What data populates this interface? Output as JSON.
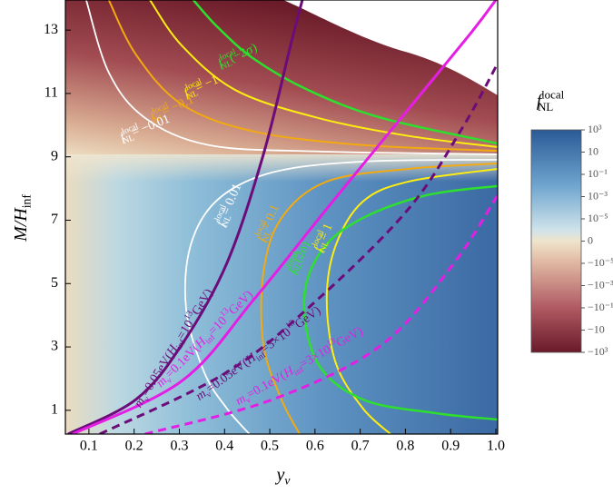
{
  "chart_data": {
    "type": "line",
    "x_label": [
      {
        "t": "y",
        "italic": true
      },
      {
        "t": "ν",
        "sub": true,
        "italic": true
      }
    ],
    "y_label": [
      {
        "t": "M/H",
        "italic": true
      },
      {
        "t": "inf",
        "sub": true
      }
    ],
    "xlim": [
      0.048,
      1.004
    ],
    "ylim": [
      0.25,
      13.95
    ],
    "xticks": [
      0.1,
      0.2,
      0.3,
      0.4,
      0.5,
      0.6,
      0.7,
      0.8,
      0.9,
      {
        "value": 1,
        "label": "1.0"
      }
    ],
    "yticks": [
      1,
      3,
      5,
      7,
      9,
      11,
      13
    ],
    "series": [
      {
        "color": "#2ee02e",
        "width": 2.5,
        "x": [
          0.331,
          0.385,
          0.465,
          0.586,
          0.747,
          1.004
        ],
        "y": [
          13.95,
          13.09,
          12.09,
          11.1,
          10.23,
          9.42
        ]
      },
      {
        "color": "#ffee10",
        "width": 2,
        "x": [
          0.235,
          0.305,
          0.425,
          0.606,
          0.807,
          1.004
        ],
        "y": [
          13.95,
          12.52,
          11.1,
          10.23,
          9.66,
          9.31
        ]
      },
      {
        "color": "#f2aa10",
        "width": 2,
        "x": [
          0.144,
          0.204,
          0.305,
          0.465,
          0.706,
          1.004
        ],
        "y": [
          13.95,
          12.23,
          10.66,
          9.8,
          9.37,
          9.19
        ]
      },
      {
        "color": "#ffffff",
        "width": 1.8,
        "x": [
          0.094,
          0.144,
          0.224,
          0.365,
          0.606,
          1.004
        ],
        "y": [
          13.95,
          11.66,
          10.23,
          9.37,
          9.17,
          9.08
        ]
      },
      {
        "color": "#ffffff",
        "width": 1.8,
        "x": [
          1.004,
          0.706,
          0.506,
          0.385,
          0.325,
          0.315,
          0.355,
          0.405,
          0.455
        ],
        "y": [
          8.91,
          8.85,
          8.51,
          7.65,
          6.21,
          4.21,
          2.2,
          1.06,
          0.25
        ]
      },
      {
        "color": "#f2aa10",
        "width": 2,
        "x": [
          1.004,
          0.807,
          0.626,
          0.526,
          0.486,
          0.486,
          0.526,
          0.566
        ],
        "y": [
          8.79,
          8.62,
          8.22,
          7.07,
          5.36,
          3.06,
          1.34,
          0.25
        ]
      },
      {
        "color": "#ffee10",
        "width": 2,
        "x": [
          1.004,
          0.807,
          0.706,
          0.646,
          0.626,
          0.646,
          0.706,
          0.767
        ],
        "y": [
          8.62,
          8.22,
          7.59,
          6.21,
          4.5,
          2.49,
          1.06,
          0.25
        ]
      },
      {
        "color": "#2ee02e",
        "width": 2.5,
        "x": [
          1.004,
          0.847,
          0.706,
          0.616,
          0.576,
          0.606,
          0.706,
          0.867,
          1.004
        ],
        "y": [
          8.08,
          7.79,
          7.07,
          6.07,
          4.5,
          2.49,
          1.34,
          0.91,
          0.71
        ]
      },
      {
        "color": "#6c0c7a",
        "width": 3,
        "x": [
          0.054,
          0.204,
          0.305,
          0.405,
          0.486,
          0.546,
          0.572
        ],
        "y": [
          0.25,
          1.34,
          3.06,
          5.64,
          9.08,
          12.52,
          13.95
        ]
      },
      {
        "color": "#e41ee4",
        "width": 3,
        "x": [
          0.064,
          0.305,
          0.465,
          0.626,
          0.807,
          0.947,
          1.0
        ],
        "y": [
          0.25,
          1.92,
          4.5,
          7.36,
          10.51,
          12.95,
          13.95
        ]
      },
      {
        "color": "#6c0c7a",
        "width": 3,
        "dashed": true,
        "x": [
          0.124,
          0.405,
          0.606,
          0.807,
          0.927,
          1.004
        ],
        "y": [
          0.25,
          2.2,
          4.5,
          7.36,
          9.94,
          11.95
        ]
      },
      {
        "color": "#e41ee4",
        "width": 3,
        "dashed": true,
        "x": [
          0.224,
          0.506,
          0.747,
          0.907,
          1.004
        ],
        "y": [
          0.25,
          1.34,
          3.06,
          5.64,
          7.79
        ]
      }
    ],
    "annotations": [
      [
        {
          "t": "f",
          "italic": true
        },
        {
          "t": "local",
          "sup": true
        },
        {
          "t": "NL",
          "sub": true
        },
        {
          "t": "(−2σ)"
        }
      ],
      [
        {
          "t": "f",
          "italic": true
        },
        {
          "t": "local",
          "sup": true
        },
        {
          "t": "NL",
          "sub": true
        },
        {
          "t": "= −1"
        }
      ],
      [
        {
          "t": "f",
          "italic": true
        },
        {
          "t": "local",
          "sup": true
        },
        {
          "t": "NL",
          "sub": true
        },
        {
          "t": "= −0.1"
        }
      ],
      [
        {
          "t": "f",
          "italic": true
        },
        {
          "t": "local",
          "sup": true
        },
        {
          "t": "NL",
          "sub": true
        },
        {
          "t": "= −0.01"
        }
      ],
      [
        {
          "t": "f",
          "italic": true
        },
        {
          "t": "local",
          "sup": true
        },
        {
          "t": "NL",
          "sub": true
        },
        {
          "t": "= 0.01"
        }
      ],
      [
        {
          "t": "f",
          "italic": true
        },
        {
          "t": "local",
          "sup": true
        },
        {
          "t": "NL",
          "sub": true
        },
        {
          "t": "= 0.1"
        }
      ],
      [
        {
          "t": "f",
          "italic": true
        },
        {
          "t": "local",
          "sup": true
        },
        {
          "t": "NL",
          "sub": true
        },
        {
          "t": "= 1"
        }
      ],
      [
        {
          "t": "f",
          "italic": true
        },
        {
          "t": "local",
          "sup": true
        },
        {
          "t": "NL",
          "sub": true
        },
        {
          "t": "(2σ)"
        }
      ],
      [
        {
          "t": "m",
          "italic": true
        },
        {
          "t": "ν",
          "sub": true
        },
        {
          "t": "=0.05eV("
        },
        {
          "t": "H",
          "italic": true
        },
        {
          "t": "inf",
          "sub": true
        },
        {
          "t": "=10"
        },
        {
          "t": "13",
          "sup": true
        },
        {
          "t": "GeV)"
        }
      ],
      [
        {
          "t": "m",
          "italic": true
        },
        {
          "t": "ν",
          "sub": true
        },
        {
          "t": "=0.1eV("
        },
        {
          "t": "H",
          "italic": true
        },
        {
          "t": "inf",
          "sub": true
        },
        {
          "t": "=10"
        },
        {
          "t": "13",
          "sup": true
        },
        {
          "t": "GeV)"
        }
      ],
      [
        {
          "t": "m",
          "italic": true
        },
        {
          "t": "ν",
          "sub": true
        },
        {
          "t": "=0.05eV("
        },
        {
          "t": "H",
          "italic": true
        },
        {
          "t": "inf",
          "sub": true
        },
        {
          "t": "=3×10"
        },
        {
          "t": "13",
          "sup": true
        },
        {
          "t": "GeV)"
        }
      ],
      [
        {
          "t": "m",
          "italic": true
        },
        {
          "t": "ν",
          "sub": true
        },
        {
          "t": "=0.1eV("
        },
        {
          "t": "H",
          "italic": true
        },
        {
          "t": "inf",
          "sub": true
        },
        {
          "t": "=3×10"
        },
        {
          "t": "13",
          "sup": true
        },
        {
          "t": "GeV)"
        }
      ]
    ],
    "colorbar": {
      "label": [
        {
          "t": "f",
          "italic": true
        },
        {
          "t": "local",
          "sup": true
        },
        {
          "t": "NL",
          "sub": true
        }
      ],
      "lim": [
        -1000,
        1000
      ],
      "ticks": [
        {
          "value": 1000,
          "label": "10³"
        },
        10,
        {
          "value": 0.1,
          "label": "10⁻¹"
        },
        {
          "value": 0.001,
          "label": "10⁻³"
        },
        {
          "value": 1e-05,
          "label": "10⁻⁵"
        },
        0,
        {
          "value": -1e-05,
          "label": "−10⁻⁵"
        },
        {
          "value": -0.001,
          "label": "−10⁻³"
        },
        {
          "value": -0.1,
          "label": "−10⁻¹"
        },
        {
          "value": -10,
          "label": "−10"
        },
        {
          "value": -1000,
          "label": "−10³"
        }
      ]
    }
  }
}
